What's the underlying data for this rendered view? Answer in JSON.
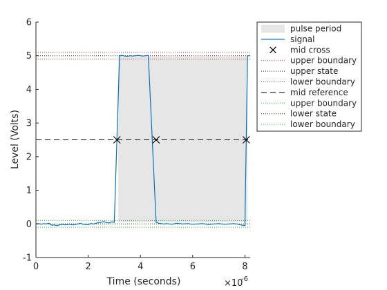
{
  "chart_data": {
    "type": "line",
    "title": "",
    "xlabel": "Time (seconds)",
    "ylabel": "Level (Volts)",
    "x_exponent_label": "×10",
    "x_exponent_power": "-6",
    "xlim": [
      0,
      8.2
    ],
    "ylim": [
      -1,
      6
    ],
    "x_ticks": [
      0,
      2,
      4,
      6,
      8
    ],
    "x_tick_labels": [
      "0",
      "2",
      "4",
      "6",
      "8"
    ],
    "y_ticks": [
      -1,
      0,
      1,
      2,
      3,
      4,
      5,
      6
    ],
    "y_tick_labels": [
      "-1",
      "0",
      "1",
      "2",
      "3",
      "4",
      "5",
      "6"
    ],
    "grid": false,
    "legend_placement": "outside-top-right",
    "signal": {
      "name": "signal",
      "color": "#0072BD",
      "x": [
        0,
        0.1,
        0.2,
        0.3,
        0.4,
        0.5,
        0.6,
        0.7,
        0.8,
        0.9,
        1.0,
        1.1,
        1.2,
        1.3,
        1.4,
        1.5,
        1.6,
        1.7,
        1.8,
        1.9,
        2.0,
        2.1,
        2.2,
        2.3,
        2.4,
        2.5,
        2.6,
        2.7,
        2.8,
        2.9,
        3.0,
        3.2,
        3.3,
        3.4,
        3.5,
        3.6,
        3.7,
        3.8,
        3.9,
        4.0,
        4.1,
        4.2,
        4.3,
        4.6,
        4.7,
        4.8,
        4.9,
        5.0,
        5.2,
        5.4,
        5.6,
        5.8,
        6.0,
        6.2,
        6.4,
        6.6,
        6.8,
        7.0,
        7.2,
        7.4,
        7.6,
        7.8,
        7.9,
        8.0,
        8.1,
        8.2
      ],
      "y": [
        0.0,
        0.01,
        -0.01,
        0.01,
        0.0,
        0.02,
        -0.04,
        -0.03,
        -0.05,
        -0.03,
        -0.01,
        -0.03,
        -0.02,
        -0.01,
        -0.03,
        -0.02,
        0.0,
        0.02,
        -0.01,
        -0.02,
        -0.02,
        0.01,
        0.0,
        0.02,
        0.04,
        0.05,
        0.07,
        0.04,
        0.03,
        0.06,
        0.05,
        5.0,
        5.01,
        4.99,
        4.98,
        5.0,
        4.99,
        5.0,
        5.01,
        5.0,
        4.99,
        5.0,
        5.01,
        0.05,
        0.02,
        0.01,
        0.0,
        0.01,
        -0.01,
        0.02,
        0.0,
        0.01,
        -0.01,
        0.0,
        0.01,
        -0.02,
        0.0,
        0.01,
        -0.01,
        0.0,
        0.01,
        -0.02,
        -0.04,
        -0.05,
        5.0,
        5.0
      ]
    },
    "pulse_period": {
      "name": "pulse period",
      "x0": 3.15,
      "x1": 8.1,
      "y0": 0.05,
      "y1": 4.98,
      "color": "#e6e6e6"
    },
    "mid_crosses": {
      "name": "mid cross",
      "x": [
        3.1,
        4.6,
        8.05
      ],
      "y": [
        2.5,
        2.5,
        2.5
      ]
    },
    "mid_reference": {
      "name": "mid reference",
      "y": 2.5
    },
    "high_state": {
      "upper_boundary": 5.1,
      "state": 5.0,
      "lower_boundary": 4.9,
      "color_upper": "#d62728",
      "color_state": "#222222",
      "color_lower": "#d62728"
    },
    "low_state": {
      "upper_boundary": 0.1,
      "state": 0.0,
      "lower_boundary": -0.1,
      "color_upper": "#2ca02c",
      "color_state": "#222222",
      "color_lower": "#2ca02c"
    },
    "legend": [
      {
        "label": "pulse period",
        "kind": "patch",
        "color": "#e6e6e6"
      },
      {
        "label": "signal",
        "kind": "line",
        "color": "#0072BD"
      },
      {
        "label": "mid cross",
        "kind": "marker",
        "color": "#000000"
      },
      {
        "label": "upper boundary",
        "kind": "dotted",
        "color": "#d62728"
      },
      {
        "label": "upper state",
        "kind": "dotted",
        "color": "#222222"
      },
      {
        "label": "lower boundary",
        "kind": "dotted",
        "color": "#d62728"
      },
      {
        "label": "mid reference",
        "kind": "dashed",
        "color": "#000000"
      },
      {
        "label": "upper boundary",
        "kind": "dotted",
        "color": "#2ca02c"
      },
      {
        "label": "lower state",
        "kind": "dotted",
        "color": "#222222"
      },
      {
        "label": "lower boundary",
        "kind": "dotted",
        "color": "#2ca02c"
      }
    ]
  }
}
